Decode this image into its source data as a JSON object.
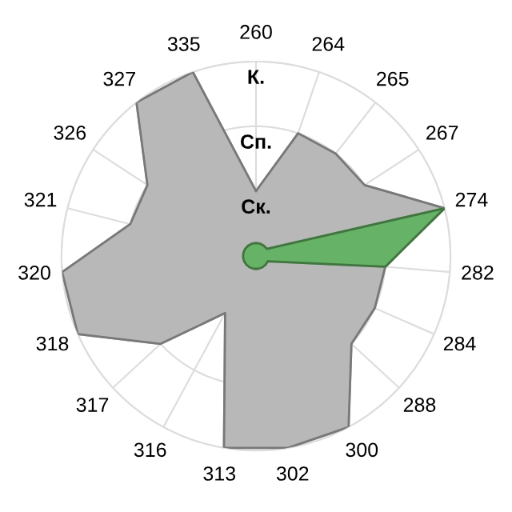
{
  "chart_data": {
    "type": "radar",
    "categories": [
      "260",
      "264",
      "265",
      "267",
      "274",
      "282",
      "284",
      "288",
      "300",
      "302",
      "313",
      "316",
      "317",
      "318",
      "320",
      "321",
      "326",
      "327",
      "335"
    ],
    "series": [
      {
        "color": "#b8b8b8",
        "values": [
          1,
          2,
          2,
          2,
          3,
          2,
          2,
          2,
          3,
          3,
          3,
          1,
          2,
          3,
          3,
          2,
          2,
          3,
          3
        ]
      },
      {
        "color": "#66b266",
        "values": [
          0.2,
          0.2,
          0.2,
          0.2,
          3,
          2,
          0.2,
          0.2,
          0.2,
          0.2,
          0.2,
          0.2,
          0.2,
          0.2,
          0.2,
          0.2,
          0.2,
          0.2,
          0.2
        ]
      }
    ],
    "ylim": [
      0,
      3
    ],
    "yticks": [
      {
        "value": 1,
        "label": "Ск."
      },
      {
        "value": 2,
        "label": "Сп."
      },
      {
        "value": 3,
        "label": "К."
      }
    ],
    "grid": true,
    "marker": "none"
  }
}
